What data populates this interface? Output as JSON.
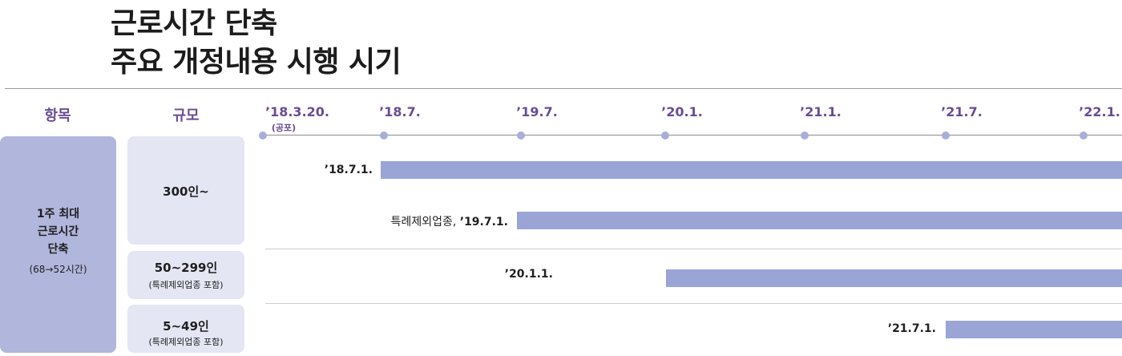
{
  "title": {
    "line1": "근로시간 단축",
    "line2": "주요 개정내용 시행 시기"
  },
  "headers": {
    "item": "항목",
    "scale": "규모"
  },
  "timeline": [
    {
      "label": "’18.3.20.",
      "sub": "(공포)"
    },
    {
      "label": "’18.7.",
      "sub": ""
    },
    {
      "label": "’19.7.",
      "sub": ""
    },
    {
      "label": "’20.1.",
      "sub": ""
    },
    {
      "label": "’21.1.",
      "sub": ""
    },
    {
      "label": "’21.7.",
      "sub": ""
    },
    {
      "label": "’22.1.",
      "sub": ""
    }
  ],
  "item": {
    "line1": "1주 최대",
    "line2": "근로시간",
    "line3": "단축",
    "sub": "(68→52시간)"
  },
  "scales": [
    {
      "label": "300인~",
      "sub": ""
    },
    {
      "label": "50~299인",
      "sub": "(특례제외업종 포함)"
    },
    {
      "label": "5~49인",
      "sub": "(특례제외업종 포함)"
    }
  ],
  "bars": [
    {
      "prefix": "",
      "label": "’18.7.1.",
      "start": "’18.7."
    },
    {
      "prefix": "특례제외업종, ",
      "label": "’19.7.1.",
      "start": "’19.7."
    },
    {
      "prefix": "",
      "label": "’20.1.1.",
      "start": "’20.1."
    },
    {
      "prefix": "",
      "label": "’21.7.1.",
      "start": "’21.7."
    }
  ],
  "colors": {
    "accent": "#6a4c93",
    "bar": "#9aa5d6",
    "item_box": "#b1b6dc",
    "scale_box": "#e4e6f3",
    "dot": "#a9aed8"
  }
}
